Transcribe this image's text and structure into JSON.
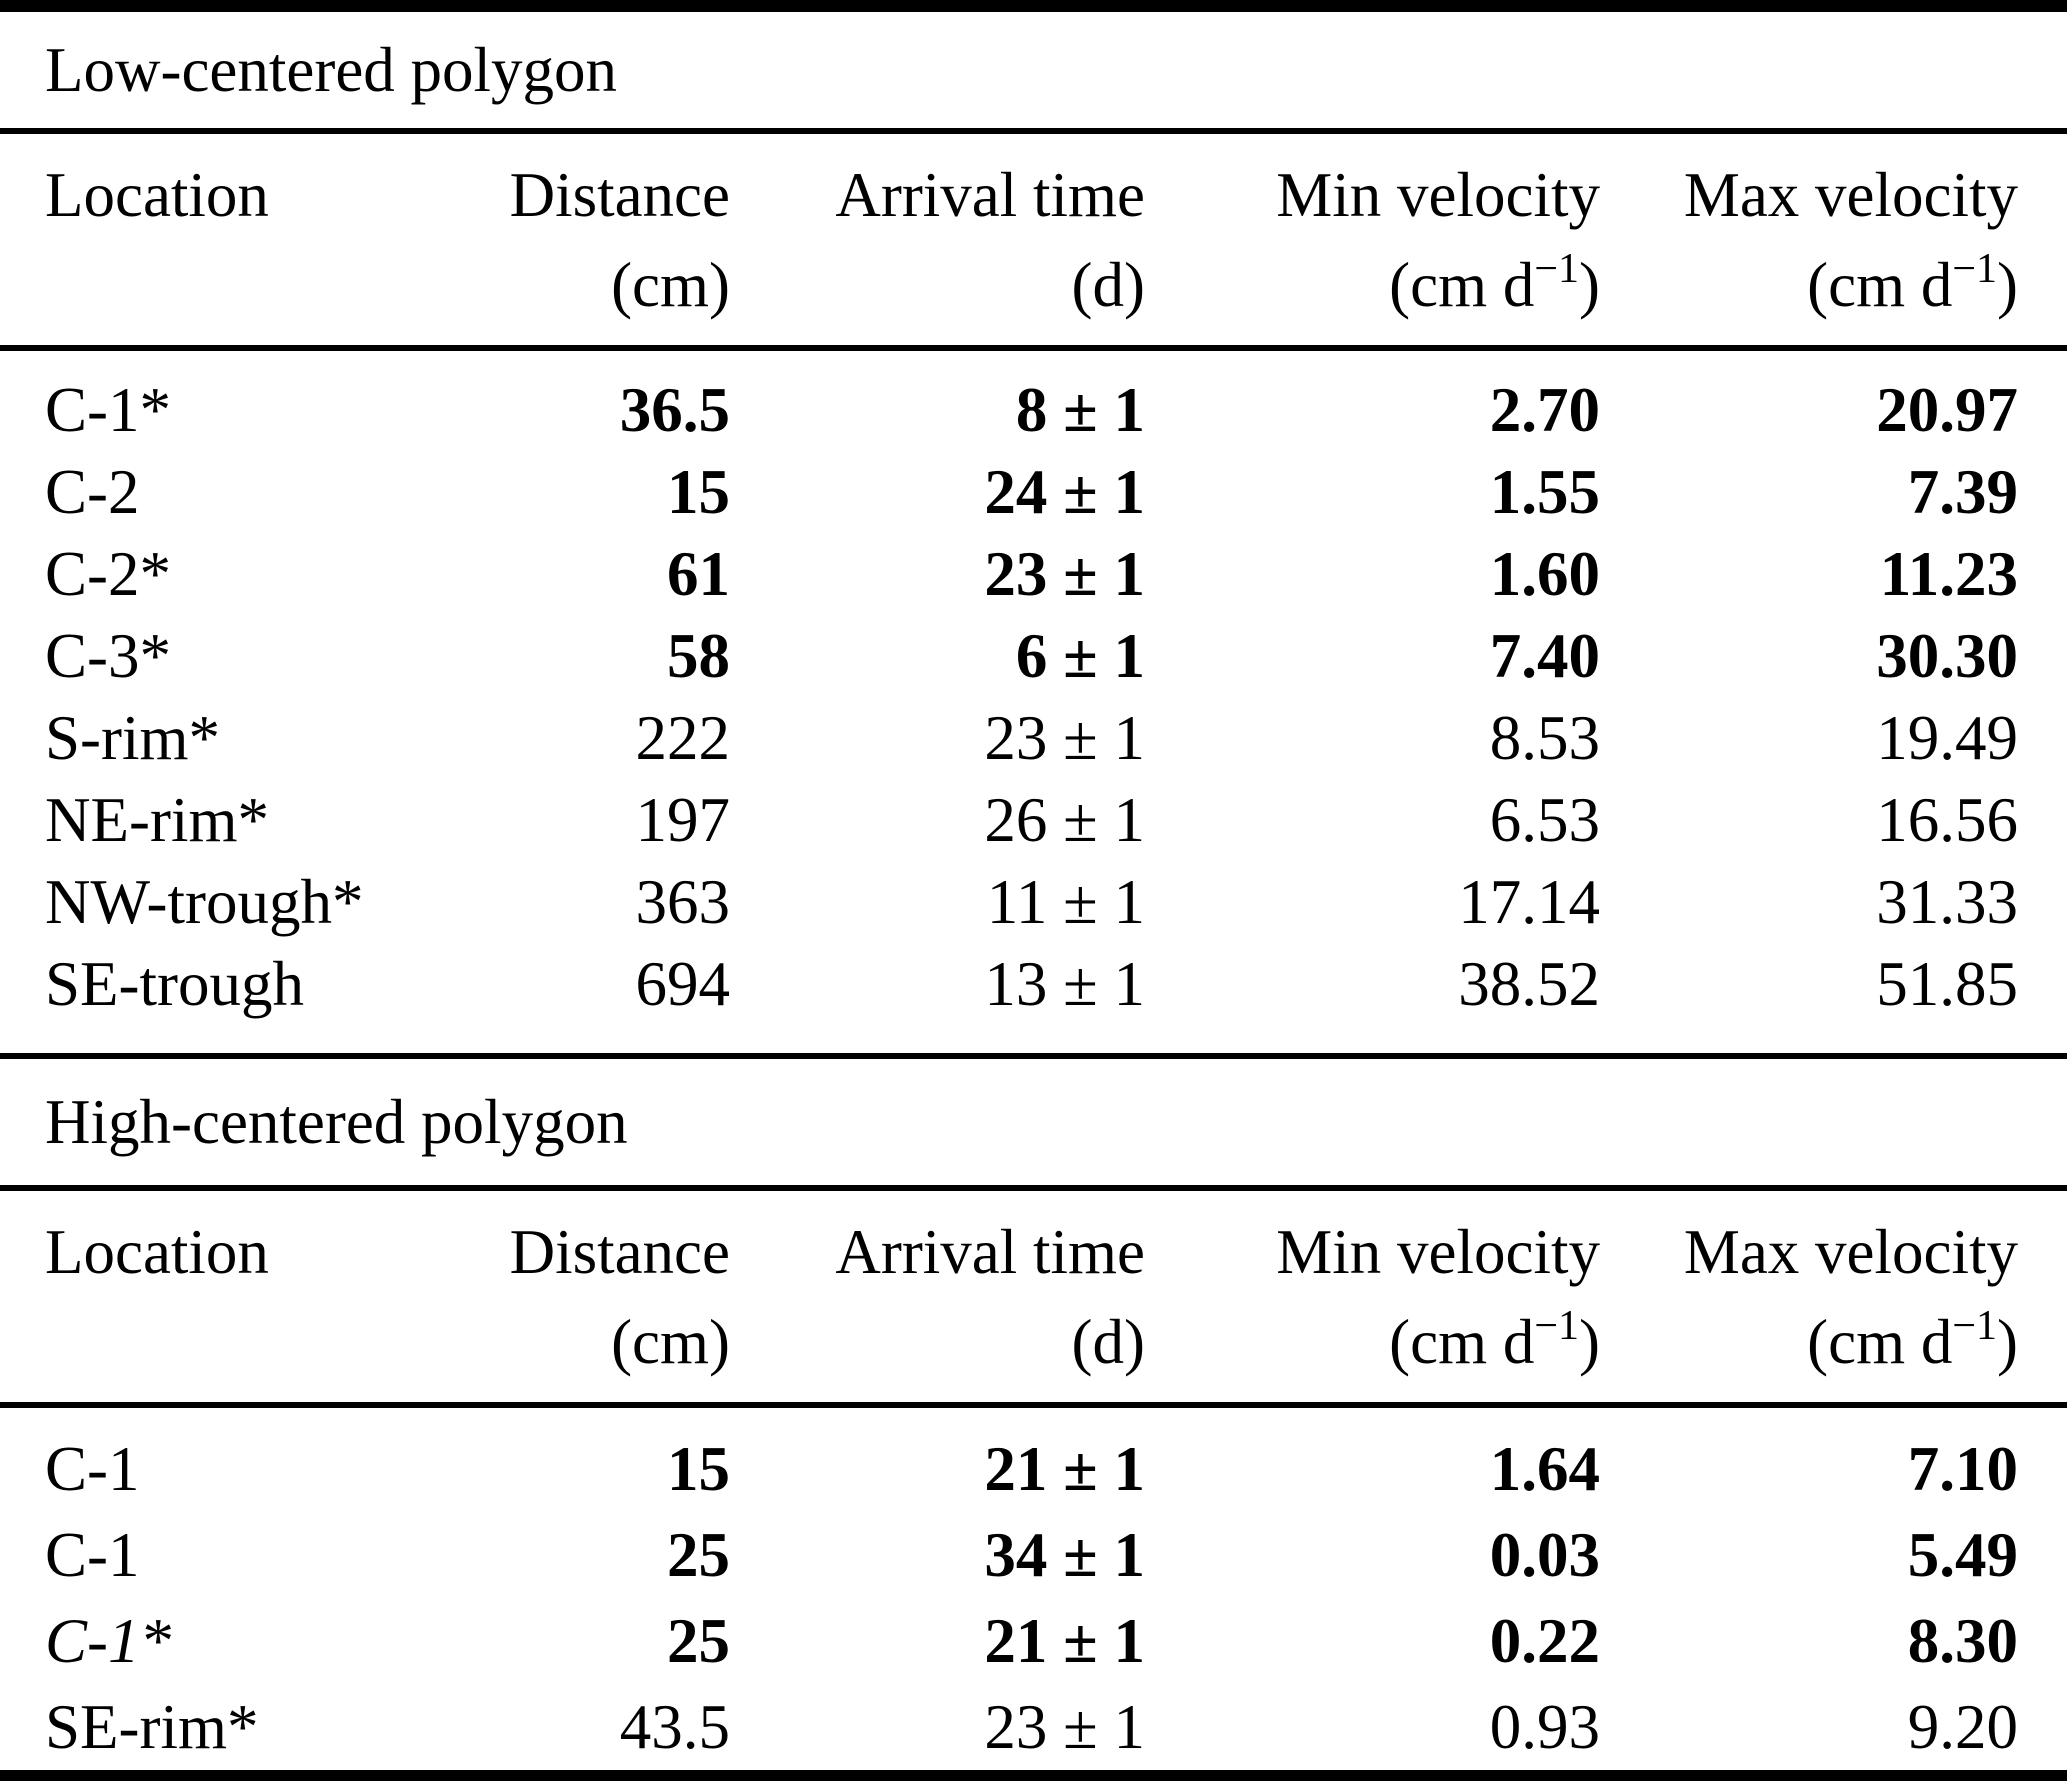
{
  "table1": {
    "title": "Low-centered polygon",
    "header": {
      "location": "Location",
      "distance": "Distance",
      "distance_unit": "(cm)",
      "arrival": "Arrival time",
      "arrival_unit": "(d)",
      "min_velocity": "Min velocity",
      "max_velocity": "Max velocity",
      "velocity_unit_pre": "(cm d",
      "velocity_unit_sup": "−1",
      "velocity_unit_post": ")"
    },
    "rows": [
      {
        "location": "C-1*",
        "distance": "36.5",
        "arrival": "8 ± 1",
        "min_velocity": "2.70",
        "max_velocity": "20.97",
        "values_bold": true,
        "location_italic": false
      },
      {
        "location": "C-2",
        "distance": "15",
        "arrival": "24 ± 1",
        "min_velocity": "1.55",
        "max_velocity": "7.39",
        "values_bold": true,
        "location_italic": false
      },
      {
        "location": "C-2*",
        "distance": "61",
        "arrival": "23 ± 1",
        "min_velocity": "1.60",
        "max_velocity": "11.23",
        "values_bold": true,
        "location_italic": false
      },
      {
        "location": "C-3*",
        "distance": "58",
        "arrival": "6 ± 1",
        "min_velocity": "7.40",
        "max_velocity": "30.30",
        "values_bold": true,
        "location_italic": false
      },
      {
        "location": "S-rim*",
        "distance": "222",
        "arrival": "23 ± 1",
        "min_velocity": "8.53",
        "max_velocity": "19.49",
        "values_bold": false,
        "location_italic": false
      },
      {
        "location": "NE-rim*",
        "distance": "197",
        "arrival": "26 ± 1",
        "min_velocity": "6.53",
        "max_velocity": "16.56",
        "values_bold": false,
        "location_italic": false
      },
      {
        "location": "NW-trough*",
        "distance": "363",
        "arrival": "11 ± 1",
        "min_velocity": "17.14",
        "max_velocity": "31.33",
        "values_bold": false,
        "location_italic": false
      },
      {
        "location": "SE-trough",
        "distance": "694",
        "arrival": "13 ± 1",
        "min_velocity": "38.52",
        "max_velocity": "51.85",
        "values_bold": false,
        "location_italic": false
      }
    ]
  },
  "table2": {
    "title": "High-centered polygon",
    "header": {
      "location": "Location",
      "distance": "Distance",
      "distance_unit": "(cm)",
      "arrival": "Arrival time",
      "arrival_unit": "(d)",
      "min_velocity": "Min velocity",
      "max_velocity": "Max velocity",
      "velocity_unit_pre": "(cm d",
      "velocity_unit_sup": "−1",
      "velocity_unit_post": ")"
    },
    "rows": [
      {
        "location": "C-1",
        "distance": "15",
        "arrival": "21 ± 1",
        "min_velocity": "1.64",
        "max_velocity": "7.10",
        "values_bold": true,
        "location_italic": false
      },
      {
        "location": "C-1",
        "distance": "25",
        "arrival": "34 ± 1",
        "min_velocity": "0.03",
        "max_velocity": "5.49",
        "values_bold": true,
        "location_italic": false
      },
      {
        "location": "C-1*",
        "distance": "25",
        "arrival": "21 ± 1",
        "min_velocity": "0.22",
        "max_velocity": "8.30",
        "values_bold": true,
        "location_italic": true
      },
      {
        "location": "SE-rim*",
        "distance": "43.5",
        "arrival": "23 ± 1",
        "min_velocity": "0.93",
        "max_velocity": "9.20",
        "values_bold": false,
        "location_italic": false
      }
    ]
  }
}
